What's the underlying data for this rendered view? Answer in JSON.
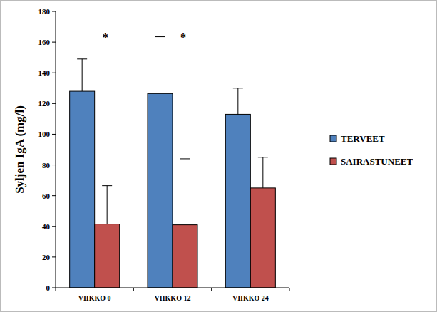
{
  "chart_data": {
    "type": "bar",
    "y_label": "Syljen IgA (mg/l)",
    "categories": [
      "VIIKKO 0",
      "VIIKKO 12",
      "VIIKKO 24"
    ],
    "series": [
      {
        "name": "TERVEET",
        "color": "#4f81bd",
        "values": [
          128,
          126.5,
          113
        ],
        "errors": [
          21,
          37,
          17
        ]
      },
      {
        "name": "SAIRASTUNEET",
        "color": "#c0504d",
        "values": [
          41.5,
          41,
          65
        ],
        "errors": [
          25,
          43,
          20
        ]
      }
    ],
    "annotations": [
      {
        "text": "*",
        "category": "VIIKKO 0"
      },
      {
        "text": "*",
        "category": "VIIKKO 12"
      }
    ],
    "ylim": [
      0,
      180
    ],
    "yticks": [
      0,
      20,
      40,
      60,
      80,
      100,
      120,
      140,
      160,
      180
    ],
    "grid": false,
    "legend": "right"
  }
}
